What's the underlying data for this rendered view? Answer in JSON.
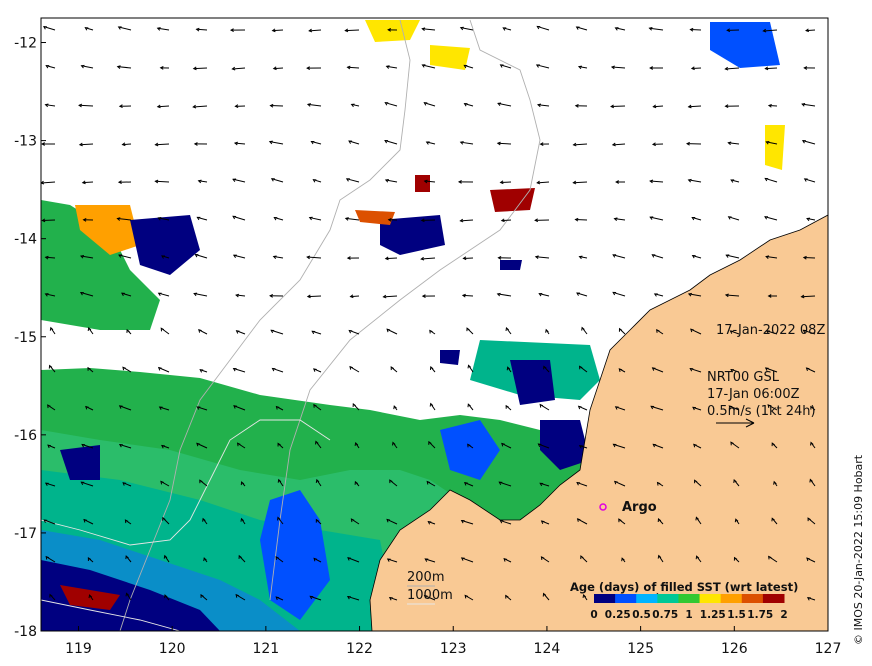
{
  "map": {
    "x_ticks": [
      "119",
      "120",
      "121",
      "122",
      "123",
      "124",
      "125",
      "126",
      "127"
    ],
    "y_ticks": [
      "-12",
      "-13",
      "-14",
      "-15",
      "-16",
      "-17",
      "-18"
    ],
    "lon_range": [
      118.6,
      127
    ],
    "lat_range": [
      -18,
      -11.75
    ],
    "timestamp": "17-Jan-2022 08Z",
    "current": {
      "line1": "NRT00 GSL",
      "line2": "17-Jan 06:00Z",
      "line3": "0.5m/s (1kt 24h)"
    },
    "argo_label": "Argo",
    "contours": {
      "c200": "200m",
      "c1000": "1000m"
    },
    "colorbar": {
      "title": "Age (days) of filled SST (wrt latest)",
      "labels": [
        "0",
        "0.25",
        "0.5",
        "0.75",
        "1",
        "1.25",
        "1.5",
        "1.75",
        "2"
      ],
      "colors": [
        "#000080",
        "#0050ff",
        "#00b4ff",
        "#00c896",
        "#32c832",
        "#ffe600",
        "#ffa000",
        "#dc5000",
        "#a00000"
      ]
    },
    "credit": "© IMOS 20-Jan-2022 15:09 Hobart",
    "colors": {
      "land": "#f9c994",
      "sst_green": "#22b14c",
      "sst_teal": "#00b48c"
    }
  }
}
